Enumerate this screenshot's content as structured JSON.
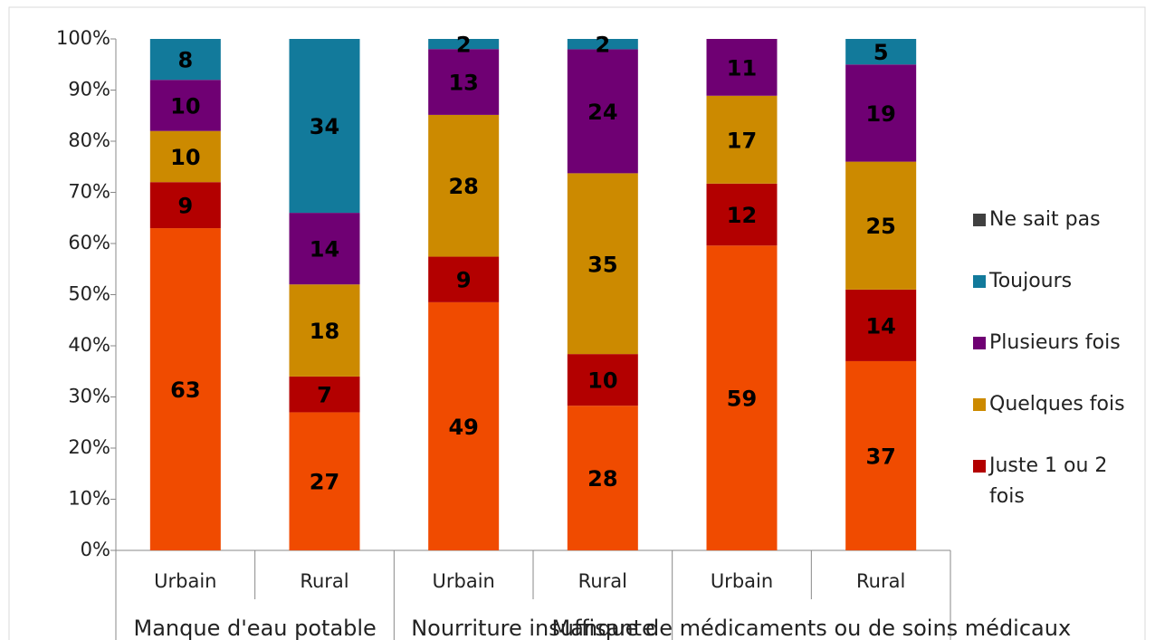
{
  "chart_data": {
    "type": "bar",
    "stacked": "percent",
    "groups": [
      "Manque d'eau potable",
      "Nourriture insuffisante",
      "Manque de médicaments ou de soins médicaux"
    ],
    "categories": [
      "Urbain",
      "Rural",
      "Urbain",
      "Rural",
      "Urbain",
      "Rural"
    ],
    "series": [
      {
        "name": null,
        "color": "#f04b00",
        "values": [
          63,
          27,
          49,
          28,
          59,
          37
        ]
      },
      {
        "name": "Juste 1 ou 2 fois",
        "color": "#b30000",
        "values": [
          9,
          7,
          9,
          10,
          12,
          14
        ]
      },
      {
        "name": "Quelques fois",
        "color": "#cc8a00",
        "values": [
          10,
          18,
          28,
          35,
          17,
          25
        ]
      },
      {
        "name": "Plusieurs fois",
        "color": "#6f0073",
        "values": [
          10,
          14,
          13,
          24,
          11,
          19
        ]
      },
      {
        "name": "Toujours",
        "color": "#127a9b",
        "values": [
          8,
          34,
          2,
          2,
          null,
          5
        ]
      },
      {
        "name": "Ne sait pas",
        "color": "#404040",
        "values": [
          null,
          null,
          null,
          null,
          null,
          null
        ]
      }
    ],
    "ylim": [
      0,
      100
    ],
    "yticks": [
      {
        "value": 0,
        "label": "0%"
      },
      {
        "value": 10,
        "label": "10%"
      },
      {
        "value": 20,
        "label": "20%"
      },
      {
        "value": 30,
        "label": "30%"
      },
      {
        "value": 40,
        "label": "40%"
      },
      {
        "value": 50,
        "label": "50%"
      },
      {
        "value": 60,
        "label": "60%"
      },
      {
        "value": 70,
        "label": "70%"
      },
      {
        "value": 80,
        "label": "80%"
      },
      {
        "value": 90,
        "label": "90%"
      },
      {
        "value": 100,
        "label": "100%"
      }
    ],
    "legend": "right"
  }
}
